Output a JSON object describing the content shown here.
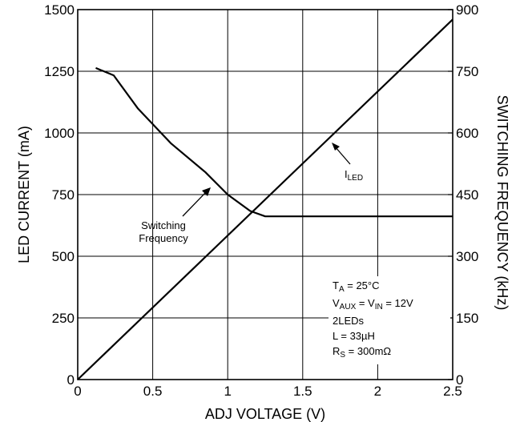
{
  "chart_data": {
    "type": "line",
    "xlabel": "ADJ VOLTAGE (V)",
    "ylabel_left": "LED CURRENT (mA)",
    "ylabel_right": "SWITCHING FREQUENCY (kHz)",
    "xlim": [
      0,
      2.5
    ],
    "ylim_left": [
      0,
      1500
    ],
    "ylim_right": [
      0,
      900
    ],
    "grid": true,
    "x_ticks": [
      "0",
      "0.5",
      "1",
      "1.5",
      "2",
      "2.5"
    ],
    "y_left_ticks": [
      "0",
      "250",
      "500",
      "750",
      "1000",
      "1250",
      "1500"
    ],
    "y_right_ticks": [
      "0",
      "150",
      "300",
      "450",
      "600",
      "750",
      "900"
    ],
    "series": [
      {
        "axis": "left",
        "x": [
          0,
          2.5
        ],
        "y": [
          0,
          1460
        ]
      },
      {
        "axis": "right",
        "x": [
          0.12,
          0.24,
          0.4,
          0.62,
          0.85,
          1.0,
          1.15,
          1.25,
          2.5
        ],
        "y": [
          758,
          740,
          660,
          575,
          505,
          450,
          410,
          397,
          397
        ]
      }
    ],
    "annotations": {
      "iled_label": "I",
      "iled_sub": "LED",
      "sw_line1": "Switching",
      "sw_line2": "Frequency"
    },
    "conditions": {
      "ta_main": "T",
      "ta_sub": "A",
      "ta_val": " = 25°C",
      "vaux_main": "V",
      "vaux_sub": "AUX",
      "vaux_mid": " = V",
      "vin_sub": "IN",
      "vaux_val": " = 12V",
      "leds": "2LEDs",
      "inductor": "L = 33µH",
      "rs_main": "R",
      "rs_sub": "S",
      "rs_val": " = 300mΩ"
    }
  }
}
